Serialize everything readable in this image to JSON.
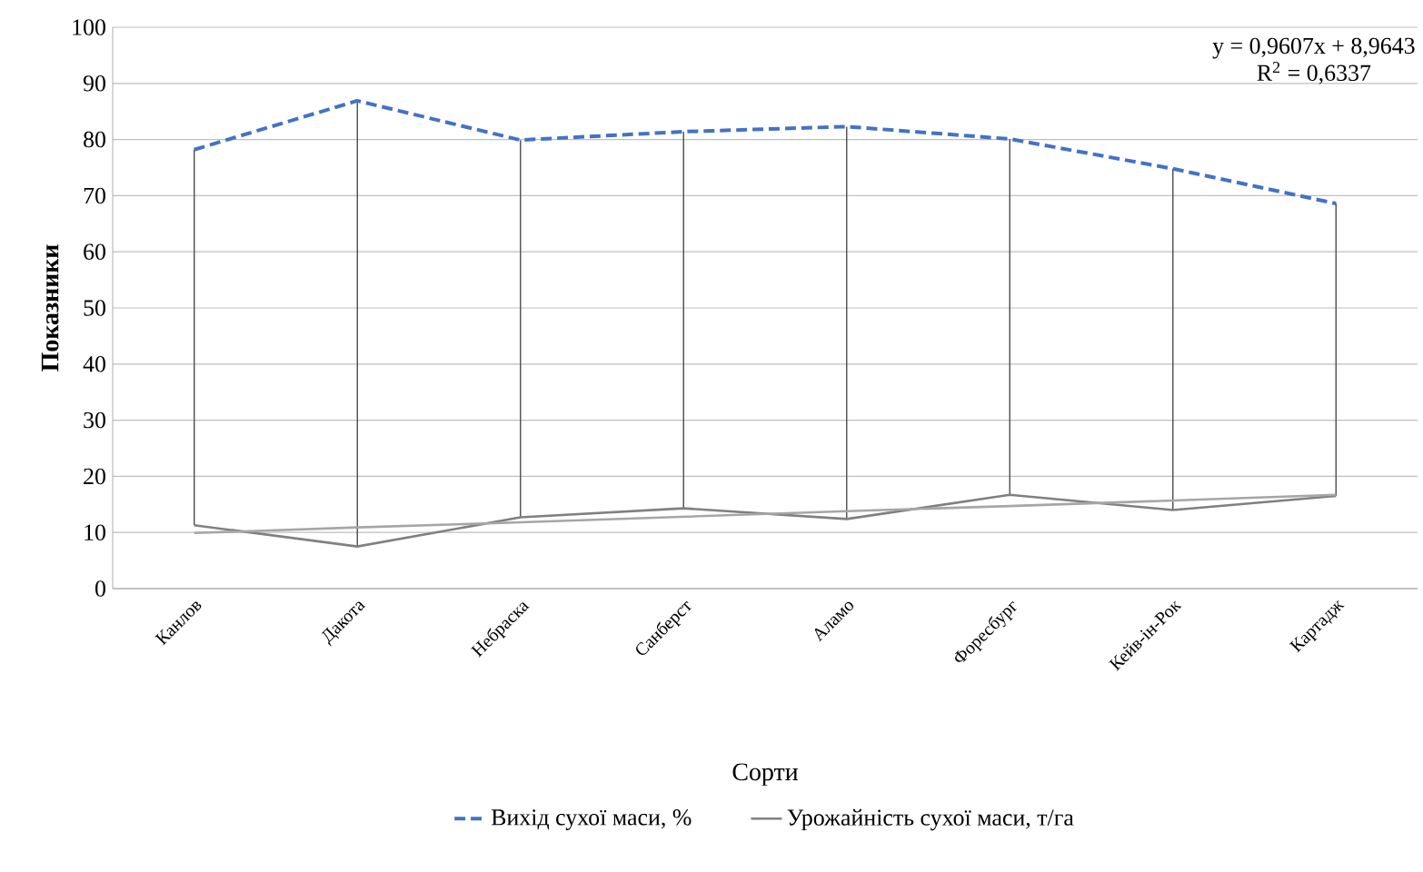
{
  "chart_data": {
    "type": "line",
    "xlabel": "Сорти",
    "ylabel": "Показники",
    "categories": [
      "Канлов",
      "Дакота",
      "Небраска",
      "Санберст",
      "Аламо",
      "Форесбург",
      "Кейв-ін-Рок",
      "Картадж"
    ],
    "series": [
      {
        "name": "Вихід сухої маси, %",
        "color": "#4472c4",
        "line_style": "dashed",
        "values": [
          78.2,
          86.9,
          79.9,
          81.4,
          82.3,
          80.1,
          74.8,
          68.6
        ],
        "errors": [
          [
            11.3,
            78.2
          ],
          [
            7.5,
            86.9
          ],
          [
            12.7,
            79.9
          ],
          [
            14.3,
            81.4
          ],
          [
            12.4,
            82.3
          ],
          [
            16.7,
            80.1
          ],
          [
            14.0,
            74.8
          ],
          [
            16.5,
            68.6
          ]
        ]
      },
      {
        "name": "Урожайність сухої маси, т/га",
        "color": "#808080",
        "line_style": "solid",
        "values": [
          11.3,
          7.5,
          12.7,
          14.3,
          12.4,
          16.7,
          14.0,
          16.5
        ]
      },
      {
        "type": "line",
        "color": "#a6a6a6",
        "line_style": "solid",
        "values": [
          9.9,
          10.9,
          11.8,
          12.8,
          13.8,
          14.7,
          15.7,
          16.7
        ]
      }
    ],
    "ylim": [
      0,
      100
    ],
    "yticks": [
      0,
      10,
      20,
      30,
      40,
      50,
      60,
      70,
      80,
      90,
      100
    ],
    "grid": "y",
    "legend": "bottom",
    "marker": "none",
    "annotations": [
      "y = 0,9607x + 8,9643",
      "R$^{2}$ = 0,6337"
    ]
  }
}
